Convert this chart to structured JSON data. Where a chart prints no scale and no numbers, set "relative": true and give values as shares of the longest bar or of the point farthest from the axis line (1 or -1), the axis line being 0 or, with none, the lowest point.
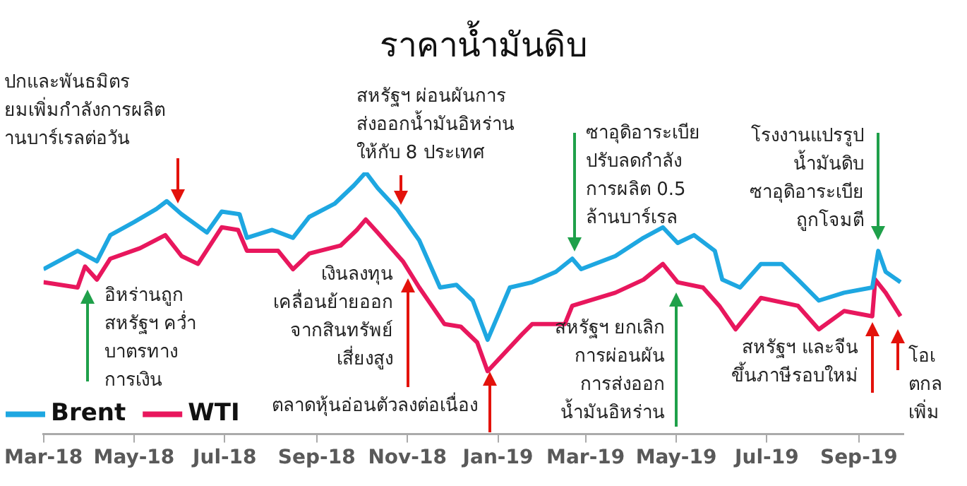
{
  "chart_data": {
    "type": "line",
    "title": "ราคาน้ำมันดิบ",
    "relative": true,
    "legend": "bottom left",
    "xlim": [
      "2018-03-01",
      "2019-10-01"
    ],
    "xticks": [
      {
        "value": "2018-03-01",
        "label": "Mar-18"
      },
      {
        "value": "2018-05-01",
        "label": "May-18"
      },
      {
        "value": "2018-07-01",
        "label": "Jul-18"
      },
      {
        "value": "2018-09-01",
        "label": "Sep-18"
      },
      {
        "value": "2018-11-01",
        "label": "Nov-18"
      },
      {
        "value": "2019-01-01",
        "label": "Jan-19"
      },
      {
        "value": "2019-03-01",
        "label": "Mar-19"
      },
      {
        "value": "2019-05-01",
        "label": "May-19"
      },
      {
        "value": "2019-07-01",
        "label": "Jul-19"
      },
      {
        "value": "2019-09-01",
        "label": "Sep-19"
      }
    ],
    "series": [
      {
        "name": "Brent",
        "color": "#1ea7e1",
        "x": [
          "2018-03-01",
          "2018-03-24",
          "2018-04-06",
          "2018-04-15",
          "2018-05-01",
          "2018-05-16",
          "2018-05-23",
          "2018-06-02",
          "2018-06-19",
          "2018-06-29",
          "2018-07-11",
          "2018-07-16",
          "2018-08-02",
          "2018-08-16",
          "2018-08-27",
          "2018-09-13",
          "2018-09-26",
          "2018-10-04",
          "2018-10-12",
          "2018-10-25",
          "2018-11-09",
          "2018-11-23",
          "2018-12-04",
          "2018-12-15",
          "2018-12-25",
          "2019-01-09",
          "2019-01-24",
          "2019-02-09",
          "2019-02-20",
          "2019-02-26",
          "2019-03-21",
          "2019-04-09",
          "2019-04-22",
          "2019-05-02",
          "2019-05-13",
          "2019-05-27",
          "2019-06-01",
          "2019-06-13",
          "2019-06-27",
          "2019-07-11",
          "2019-07-22",
          "2019-08-05",
          "2019-08-22",
          "2019-09-10",
          "2019-09-14",
          "2019-09-19",
          "2019-09-29"
        ],
        "values": [
          0.63,
          0.7,
          0.66,
          0.76,
          0.81,
          0.86,
          0.89,
          0.84,
          0.77,
          0.85,
          0.84,
          0.75,
          0.78,
          0.75,
          0.83,
          0.88,
          0.95,
          1.0,
          0.94,
          0.86,
          0.74,
          0.56,
          0.57,
          0.51,
          0.36,
          0.56,
          0.58,
          0.62,
          0.67,
          0.63,
          0.68,
          0.75,
          0.79,
          0.73,
          0.76,
          0.7,
          0.59,
          0.56,
          0.65,
          0.65,
          0.59,
          0.51,
          0.54,
          0.56,
          0.7,
          0.62,
          0.58
        ]
      },
      {
        "name": "WTI",
        "color": "#e8175d",
        "x": [
          "2018-03-01",
          "2018-03-24",
          "2018-03-29",
          "2018-04-06",
          "2018-04-15",
          "2018-05-05",
          "2018-05-22",
          "2018-06-02",
          "2018-06-13",
          "2018-06-29",
          "2018-07-10",
          "2018-07-16",
          "2018-08-06",
          "2018-08-16",
          "2018-08-27",
          "2018-09-17",
          "2018-09-28",
          "2018-10-04",
          "2018-10-12",
          "2018-10-29",
          "2018-11-09",
          "2018-11-26",
          "2018-12-07",
          "2018-12-18",
          "2018-12-25",
          "2019-01-17",
          "2019-01-24",
          "2019-02-15",
          "2019-02-20",
          "2019-03-21",
          "2019-04-09",
          "2019-04-22",
          "2019-05-02",
          "2019-05-19",
          "2019-05-30",
          "2019-06-10",
          "2019-06-27",
          "2019-07-22",
          "2019-08-05",
          "2019-08-22",
          "2019-09-10",
          "2019-09-12",
          "2019-09-19",
          "2019-09-29"
        ],
        "values": [
          0.58,
          0.56,
          0.64,
          0.59,
          0.67,
          0.71,
          0.76,
          0.68,
          0.65,
          0.79,
          0.78,
          0.7,
          0.7,
          0.63,
          0.69,
          0.72,
          0.78,
          0.82,
          0.77,
          0.66,
          0.56,
          0.42,
          0.41,
          0.35,
          0.24,
          0.38,
          0.42,
          0.42,
          0.49,
          0.54,
          0.59,
          0.65,
          0.58,
          0.56,
          0.49,
          0.4,
          0.52,
          0.49,
          0.4,
          0.47,
          0.45,
          0.59,
          0.54,
          0.45
        ]
      }
    ],
    "annotations": [
      "ปกและพันธมิตร\nยมเพิ่มกำลังการผลิต\nานบาร์เรลต่อวัน",
      "อิหร่านถูก\nสหรัฐฯ คว่ำ\nบาตรทาง\nการเงิน",
      "สหรัฐฯ ผ่อนผันการ\nส่งออกน้ำมันอิหร่าน\nให้กับ 8 ประเทศ",
      "เงินลงทุน\nเคลื่อนย้ายออก\nจากสินทรัพย์\nเสี่ยงสูง",
      "ตลาดหุ้นอ่อนตัวลงต่อเนื่อง",
      "ซาอุดิอาระเบีย\nปรับลดกำลัง\nการผลิต 0.5\nล้านบาร์เรล",
      "สหรัฐฯ ยกเลิก\nการผ่อนผัน\nการส่งออก\nน้ำมันอิหร่าน",
      "โรงงานแปรรูป\nน้ำมันดิบ\nซาอุดิอาระเบีย\nถูกโจมตี",
      "สหรัฐฯ และจีน\nขึ้นภาษีรอบใหม่",
      "โอเ\nตกล\nเพิ่ม"
    ]
  }
}
